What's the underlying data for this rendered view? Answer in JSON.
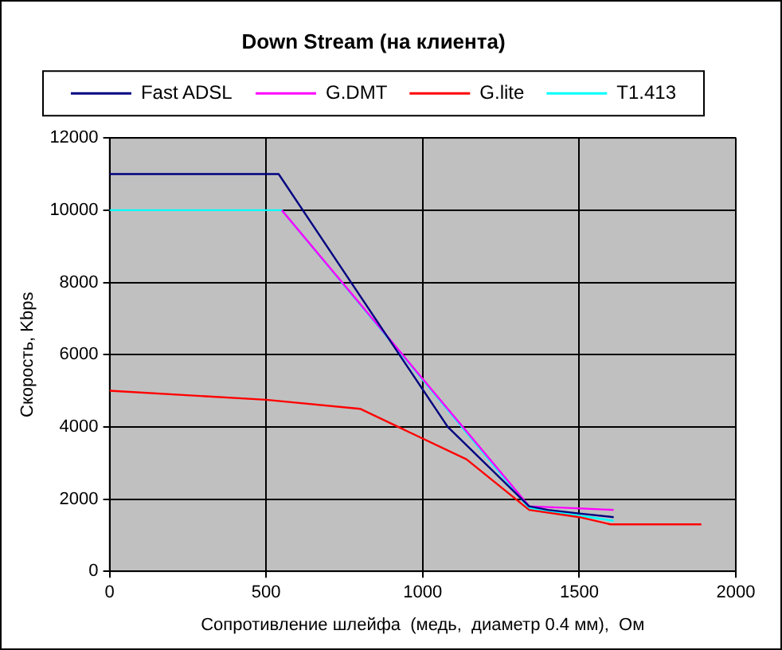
{
  "chart_data": {
    "type": "line",
    "title": "Down Stream (на клиента)",
    "xlabel": "Сопротивление шлейфа  (медь,  диаметр 0.4 мм),  Ом",
    "ylabel": "Скорость, Kbps",
    "series": [
      {
        "name": "Fast ADSL",
        "color": "#000080",
        "x": [
          0,
          540,
          1080,
          1340,
          1400,
          1500,
          1610
        ],
        "values": [
          11000,
          11000,
          4000,
          1800,
          1700,
          1600,
          1500
        ]
      },
      {
        "name": "G.DMT",
        "color": "#ff00ff",
        "x": [
          550,
          1340,
          1480,
          1610
        ],
        "values": [
          10000,
          1800,
          1750,
          1700
        ]
      },
      {
        "name": "G.lite",
        "color": "#ff0000",
        "x": [
          0,
          500,
          800,
          1140,
          1340,
          1500,
          1600,
          1890
        ],
        "values": [
          5000,
          4750,
          4500,
          3100,
          1700,
          1500,
          1300,
          1300
        ]
      },
      {
        "name": "T1.413",
        "color": "#00ffff",
        "x": [
          0,
          550,
          1340,
          1610
        ],
        "values": [
          10000,
          10000,
          1750,
          1400
        ]
      }
    ],
    "xlim": [
      0,
      2000
    ],
    "xticks": [
      0,
      500,
      1000,
      1500,
      2000
    ],
    "ylim": [
      0,
      12000
    ],
    "yticks": [
      0,
      2000,
      4000,
      6000,
      8000,
      10000,
      12000
    ],
    "grid": true,
    "legend": "top",
    "marker": "none",
    "line_style": "solid"
  }
}
